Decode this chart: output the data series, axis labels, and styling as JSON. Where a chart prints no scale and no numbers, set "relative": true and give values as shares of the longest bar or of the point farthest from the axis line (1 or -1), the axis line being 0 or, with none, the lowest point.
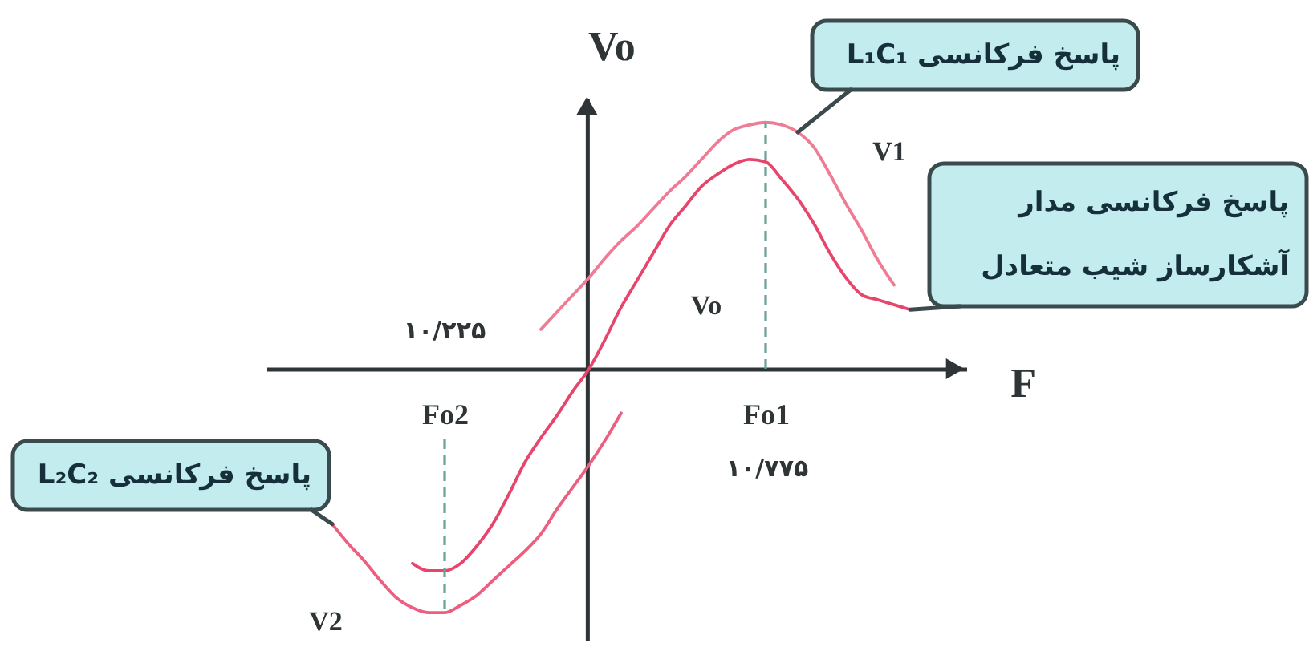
{
  "chart_data": {
    "type": "line",
    "xlabel": "F",
    "ylabel": "Vo",
    "relative": true,
    "categories": [
      null,
      null,
      null,
      null,
      null,
      null,
      null,
      "Fo2",
      null,
      null,
      null,
      null,
      null,
      null,
      null,
      null,
      null,
      null,
      null,
      null,
      null,
      null,
      null,
      null,
      null,
      null,
      null,
      "Fo1",
      null,
      null,
      null,
      null,
      null,
      null,
      null,
      null,
      null
    ],
    "ref_lines": [
      {
        "axis": "x",
        "value": "Fo2",
        "color": "#6aa39a",
        "line_style": "dashed"
      },
      {
        "axis": "x",
        "value": "Fo1",
        "color": "#6aa39a",
        "line_style": "dashed"
      }
    ],
    "annotations": [
      "V1",
      "Vo",
      "V2",
      "۱۰/۲۲۵",
      "۱۰/۷۷۵"
    ],
    "series": [
      {
        "name": "پاسخ فرکانسی L₁C₁",
        "color": "#f07b95",
        "values": [
          null,
          null,
          null,
          null,
          null,
          null,
          null,
          null,
          null,
          null,
          null,
          null,
          null,
          0.16,
          0.23,
          0.3,
          0.37,
          0.45,
          0.52,
          0.58,
          0.65,
          0.72,
          0.78,
          0.85,
          0.92,
          0.97,
          0.99,
          1.0,
          0.99,
          0.96,
          0.9,
          0.79,
          0.67,
          0.56,
          0.44,
          0.34,
          null
        ]
      },
      {
        "name": "پاسخ فرکانسی L₂C₂",
        "color": "#ec5f80",
        "values": [
          -0.63,
          -0.71,
          -0.78,
          -0.86,
          -0.93,
          -0.97,
          -0.99,
          -0.99,
          -0.96,
          -0.92,
          -0.86,
          -0.8,
          -0.74,
          -0.67,
          -0.57,
          -0.48,
          -0.39,
          -0.29,
          -0.18,
          null,
          null,
          null,
          null,
          null,
          null,
          null,
          null,
          null,
          null,
          null,
          null,
          null,
          null,
          null,
          null,
          null,
          null
        ]
      },
      {
        "name": "پاسخ فرکانسی مدار آشکارساز شیب متعادل",
        "color": "#e8456c",
        "values": [
          null,
          null,
          null,
          null,
          null,
          -0.79,
          -0.82,
          -0.82,
          -0.79,
          -0.72,
          -0.63,
          -0.51,
          -0.38,
          -0.28,
          -0.19,
          -0.09,
          0,
          0.12,
          0.25,
          0.36,
          0.47,
          0.58,
          0.66,
          0.74,
          0.79,
          0.83,
          0.85,
          0.84,
          0.77,
          0.69,
          0.59,
          0.47,
          0.37,
          0.3,
          0.28,
          0.26,
          0.24
        ]
      }
    ]
  }
}
